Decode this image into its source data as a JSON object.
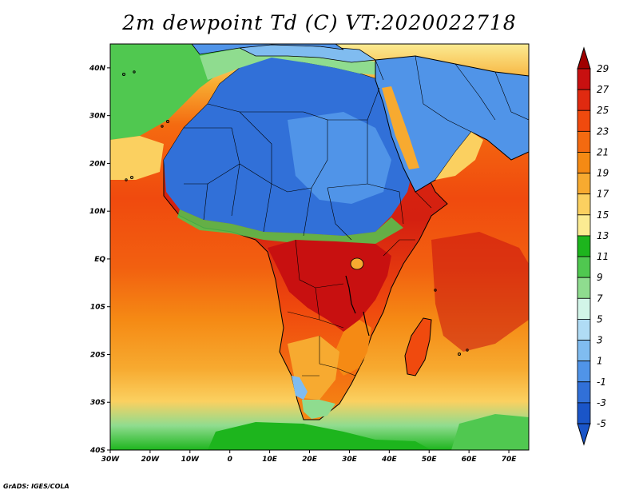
{
  "title": "2m dewpoint Td (C) VT:2020022718",
  "credit": "GrADS: IGES/COLA",
  "map": {
    "lon_range": [
      -30,
      75
    ],
    "lat_range": [
      -40,
      45
    ],
    "lat_ticks": [
      {
        "value": 40,
        "label": "40N"
      },
      {
        "value": 30,
        "label": "30N"
      },
      {
        "value": 20,
        "label": "20N"
      },
      {
        "value": 10,
        "label": "10N"
      },
      {
        "value": 0,
        "label": "EQ"
      },
      {
        "value": -10,
        "label": "10S"
      },
      {
        "value": -20,
        "label": "20S"
      },
      {
        "value": -30,
        "label": "30S"
      },
      {
        "value": -40,
        "label": "40S"
      }
    ],
    "lon_ticks": [
      {
        "value": -30,
        "label": "30W"
      },
      {
        "value": -20,
        "label": "20W"
      },
      {
        "value": -10,
        "label": "10W"
      },
      {
        "value": 0,
        "label": "0"
      },
      {
        "value": 10,
        "label": "10E"
      },
      {
        "value": 20,
        "label": "20E"
      },
      {
        "value": 30,
        "label": "30E"
      },
      {
        "value": 40,
        "label": "40E"
      },
      {
        "value": 50,
        "label": "50E"
      },
      {
        "value": 60,
        "label": "60E"
      },
      {
        "value": 70,
        "label": "70E"
      }
    ]
  },
  "colorbar": {
    "levels": [
      "29",
      "27",
      "25",
      "23",
      "21",
      "19",
      "17",
      "15",
      "13",
      "11",
      "9",
      "7",
      "5",
      "3",
      "1",
      "-1",
      "-3",
      "-5"
    ],
    "colors_top_to_bottom": [
      "#a00000",
      "#c81010",
      "#e02a10",
      "#f04a0e",
      "#f46a10",
      "#f58a14",
      "#f7aa30",
      "#fbd060",
      "#fbeb92",
      "#1db51d",
      "#50c850",
      "#8fdc8f",
      "#d2f5e8",
      "#b0dcf5",
      "#80bcf0",
      "#5094e8",
      "#3170d8",
      "#1a55c8",
      "#1a55c8"
    ]
  }
}
